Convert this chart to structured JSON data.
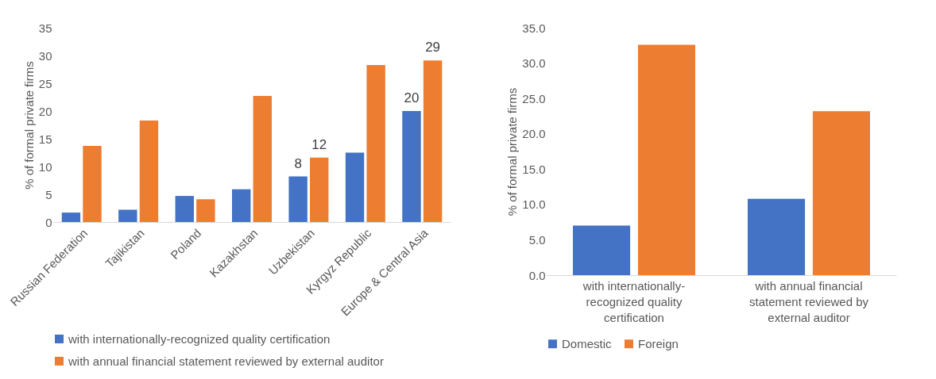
{
  "chart_data": [
    {
      "type": "bar",
      "ylabel": "% of formal private firms",
      "categories": [
        "Russian Federation",
        "Tajikistan",
        "Poland",
        "Kazakhstan",
        "Uzbekistan",
        "Kyrgyz Republic",
        "Europe & Central Asia"
      ],
      "series": [
        {
          "name": "with internationally-recognized quality certification",
          "color": "#4472c4",
          "values": [
            1.7,
            2.2,
            4.7,
            5.9,
            8.2,
            12.5,
            20.0
          ],
          "value_labels": [
            null,
            null,
            null,
            null,
            "8",
            null,
            "20"
          ]
        },
        {
          "name": "with annual financial statement reviewed by external auditor",
          "color": "#ed7d31",
          "values": [
            13.7,
            18.3,
            4.1,
            22.7,
            11.6,
            28.3,
            29.1
          ],
          "value_labels": [
            null,
            null,
            null,
            null,
            "12",
            null,
            "29"
          ]
        }
      ],
      "ylim": [
        0,
        35
      ],
      "yticks": [
        0,
        5,
        10,
        15,
        20,
        25,
        30,
        35
      ],
      "grid": false,
      "legend": "bottom"
    },
    {
      "type": "bar",
      "ylabel": "% of formal private firms",
      "categories": [
        "with internationally-recognized quality certification",
        "with annual financial statement reviewed by external auditor"
      ],
      "series": [
        {
          "name": "Domestic",
          "color": "#4472c4",
          "values": [
            7.0,
            10.8
          ]
        },
        {
          "name": "Foreign",
          "color": "#ed7d31",
          "values": [
            32.6,
            23.2
          ]
        }
      ],
      "ylim": [
        0,
        35
      ],
      "yticks": [
        {
          "value": 0,
          "label": "0.0"
        },
        {
          "value": 5,
          "label": "5.0"
        },
        {
          "value": 10,
          "label": "10.0"
        },
        {
          "value": 15,
          "label": "15.0"
        },
        {
          "value": 20,
          "label": "20.0"
        },
        {
          "value": 25,
          "label": "25.0"
        },
        {
          "value": 30,
          "label": "30.0"
        },
        {
          "value": 35,
          "label": "35.0"
        }
      ],
      "grid": false,
      "legend": "bottom"
    }
  ]
}
